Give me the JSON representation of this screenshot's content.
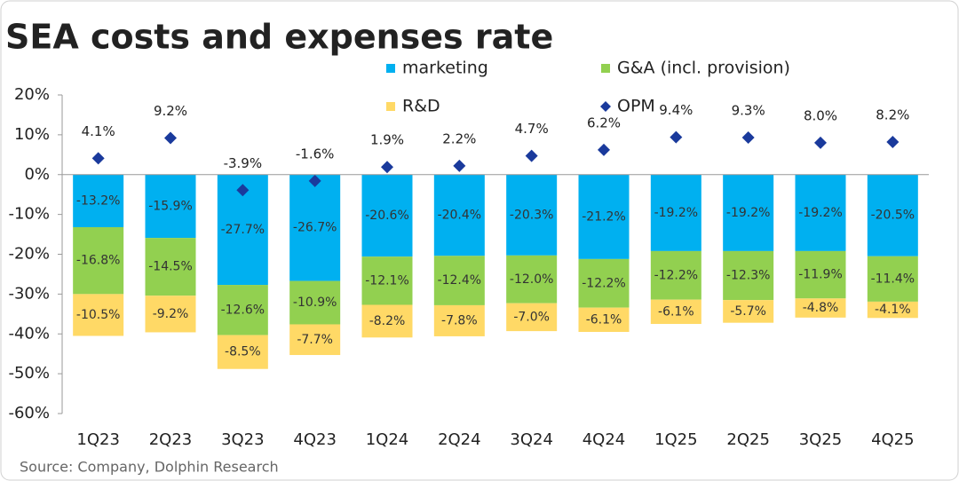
{
  "chart_data": {
    "type": "bar",
    "stacked": true,
    "title": "SEA costs and expenses rate",
    "source": "Source: Company, Dolphin Research",
    "categories": [
      "1Q23",
      "2Q23",
      "3Q23",
      "4Q23",
      "1Q24",
      "2Q24",
      "3Q24",
      "4Q24",
      "1Q25",
      "2Q25",
      "3Q25",
      "4Q25"
    ],
    "legend": "top",
    "ylim": [
      -60,
      20
    ],
    "yticks": [
      {
        "value": -60,
        "label": "-60%"
      },
      {
        "value": -50,
        "label": "-50%"
      },
      {
        "value": -40,
        "label": "-40%"
      },
      {
        "value": -30,
        "label": "-30%"
      },
      {
        "value": -20,
        "label": "-20%"
      },
      {
        "value": -10,
        "label": "-10%"
      },
      {
        "value": 0,
        "label": "0%"
      },
      {
        "value": 10,
        "label": "10%"
      },
      {
        "value": 20,
        "label": "20%"
      }
    ],
    "series": [
      {
        "name": "marketing",
        "type": "bar",
        "color": "#00b0f0",
        "values": [
          -13.2,
          -15.9,
          -27.7,
          -26.7,
          -20.6,
          -20.4,
          -20.3,
          -21.2,
          -19.2,
          -19.2,
          -19.2,
          -20.5
        ],
        "value_labels": [
          "-13.2%",
          "-15.9%",
          "-27.7%",
          "-26.7%",
          "-20.6%",
          "-20.4%",
          "-20.3%",
          "-21.2%",
          "-19.2%",
          "-19.2%",
          "-19.2%",
          "-20.5%"
        ]
      },
      {
        "name": "G&A (incl. provision)",
        "type": "bar",
        "color": "#92d050",
        "values": [
          -16.8,
          -14.5,
          -12.6,
          -10.9,
          -12.1,
          -12.4,
          -12.0,
          -12.2,
          -12.2,
          -12.3,
          -11.9,
          -11.4
        ],
        "value_labels": [
          "-16.8%",
          "-14.5%",
          "-12.6%",
          "-10.9%",
          "-12.1%",
          "-12.4%",
          "-12.0%",
          "-12.2%",
          "-12.2%",
          "-12.3%",
          "-11.9%",
          "-11.4%"
        ]
      },
      {
        "name": "R&D",
        "type": "bar",
        "color": "#ffd966",
        "values": [
          -10.5,
          -9.2,
          -8.5,
          -7.7,
          -8.2,
          -7.8,
          -7.0,
          -6.1,
          -6.1,
          -5.7,
          -4.8,
          -4.1
        ],
        "value_labels": [
          "-10.5%",
          "-9.2%",
          "-8.5%",
          "-7.7%",
          "-8.2%",
          "-7.8%",
          "-7.0%",
          "-6.1%",
          "-6.1%",
          "-5.7%",
          "-4.8%",
          "-4.1%"
        ]
      },
      {
        "name": "OPM",
        "type": "scatter",
        "color": "#1a3a9c",
        "values": [
          4.1,
          9.2,
          -3.9,
          -1.6,
          1.9,
          2.2,
          4.7,
          6.2,
          9.4,
          9.3,
          8.0,
          8.2
        ],
        "value_labels": [
          "4.1%",
          "9.2%",
          "-3.9%",
          "-1.6%",
          "1.9%",
          "2.2%",
          "4.7%",
          "6.2%",
          "9.4%",
          "9.3%",
          "8.0%",
          "8.2%"
        ]
      }
    ]
  }
}
